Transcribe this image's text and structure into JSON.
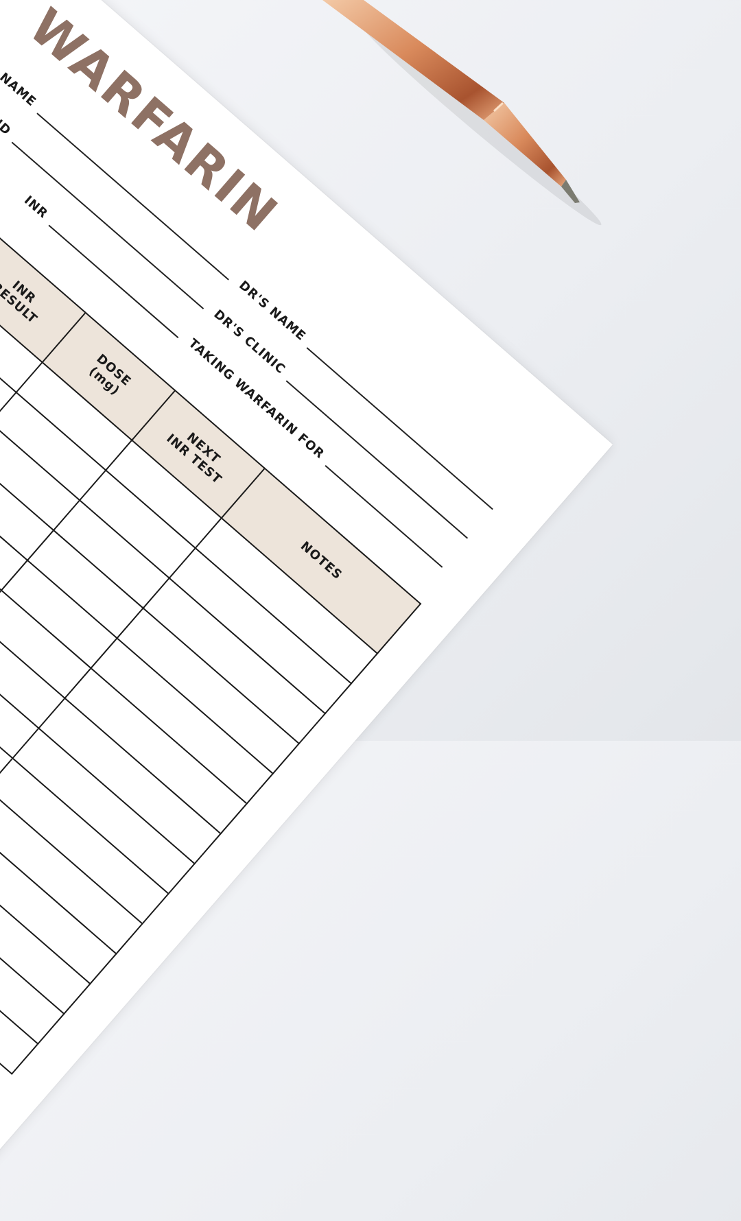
{
  "document": {
    "title": "WARFARIN",
    "accent_color": "#8e7164",
    "header_fill_color": "#ede4da",
    "left_fields": [
      {
        "label": "NAME"
      },
      {
        "label": "WARFARIN BRAND"
      },
      {
        "label": "INR"
      }
    ],
    "right_fields": [
      {
        "label": "DR'S NAME"
      },
      {
        "label": "DR'S CLINIC"
      },
      {
        "label": "TAKING WARFARIN FOR"
      }
    ],
    "table": {
      "columns": [
        "",
        "",
        "",
        "INR\nRESULT",
        "DOSE\n(mg)",
        "NEXT\nINR TEST",
        "NOTES"
      ]
    }
  },
  "scene": {
    "props": [
      "rose-gold-pen"
    ]
  }
}
